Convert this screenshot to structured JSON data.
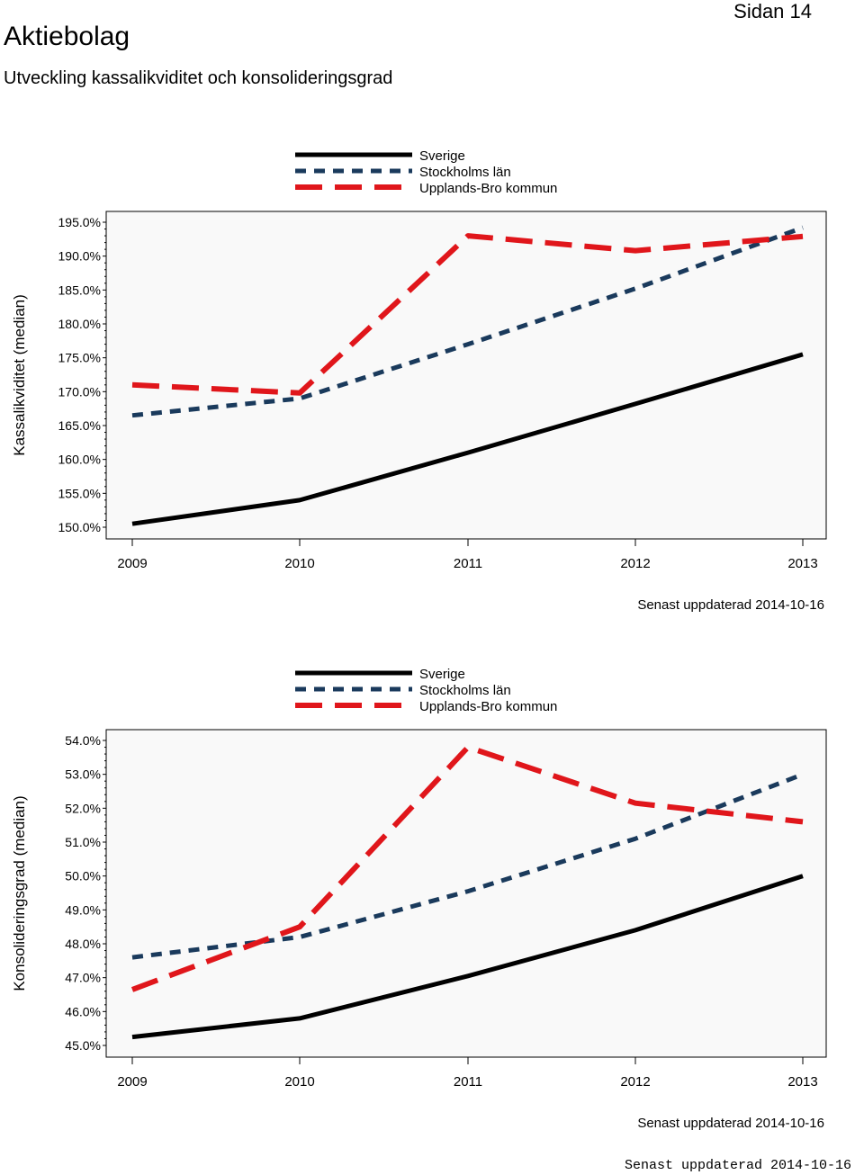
{
  "header": {
    "title": "Aktiebolag",
    "page_label": "Sidan 14",
    "subtitle": "Utveckling kassalikviditet och konsolideringsgrad"
  },
  "colors": {
    "sverige": "#000000",
    "stockholm": "#1a3a5c",
    "upplands": "#e0161b",
    "plot_bg": "#f9f9f9"
  },
  "chart_data": [
    {
      "type": "line",
      "title": "",
      "ylabel": "Kassalikviditet (median)",
      "xlabel": "",
      "x": [
        "2009",
        "2010",
        "2011",
        "2012",
        "2013"
      ],
      "ylim": [
        150,
        195
      ],
      "yticks": [
        "150.0%",
        "155.0%",
        "160.0%",
        "165.0%",
        "170.0%",
        "175.0%",
        "180.0%",
        "185.0%",
        "190.0%",
        "195.0%"
      ],
      "ytick_values": [
        150,
        155,
        160,
        165,
        170,
        175,
        180,
        185,
        190,
        195
      ],
      "legend": [
        "Sverige",
        "Stockholms län",
        "Upplands-Bro kommun"
      ],
      "series": [
        {
          "name": "Sverige",
          "values": [
            150.5,
            154.0,
            161.0,
            168.2,
            175.5
          ]
        },
        {
          "name": "Stockholms län",
          "values": [
            166.5,
            169.0,
            177.0,
            185.2,
            194.2
          ]
        },
        {
          "name": "Upplands-Bro kommun",
          "values": [
            171.0,
            169.8,
            193.0,
            190.8,
            192.9
          ]
        }
      ],
      "note": "Senast uppdaterad 2014-10-16"
    },
    {
      "type": "line",
      "title": "",
      "ylabel": "Konsolideringsgrad (median)",
      "xlabel": "",
      "x": [
        "2009",
        "2010",
        "2011",
        "2012",
        "2013"
      ],
      "ylim": [
        45,
        54
      ],
      "yticks": [
        "45.0%",
        "46.0%",
        "47.0%",
        "48.0%",
        "49.0%",
        "50.0%",
        "51.0%",
        "52.0%",
        "53.0%",
        "54.0%"
      ],
      "ytick_values": [
        45,
        46,
        47,
        48,
        49,
        50,
        51,
        52,
        53,
        54
      ],
      "legend": [
        "Sverige",
        "Stockholms län",
        "Upplands-Bro kommun"
      ],
      "series": [
        {
          "name": "Sverige",
          "values": [
            45.25,
            45.8,
            47.05,
            48.4,
            50.0
          ]
        },
        {
          "name": "Stockholms län",
          "values": [
            47.6,
            48.2,
            49.55,
            51.1,
            53.0
          ]
        },
        {
          "name": "Upplands-Bro kommun",
          "values": [
            46.65,
            48.5,
            53.8,
            52.15,
            51.6
          ]
        }
      ],
      "note": "Senast uppdaterad 2014-10-16"
    }
  ],
  "footer": {
    "mono_note": "Senast uppdaterad 2014-10-16"
  }
}
